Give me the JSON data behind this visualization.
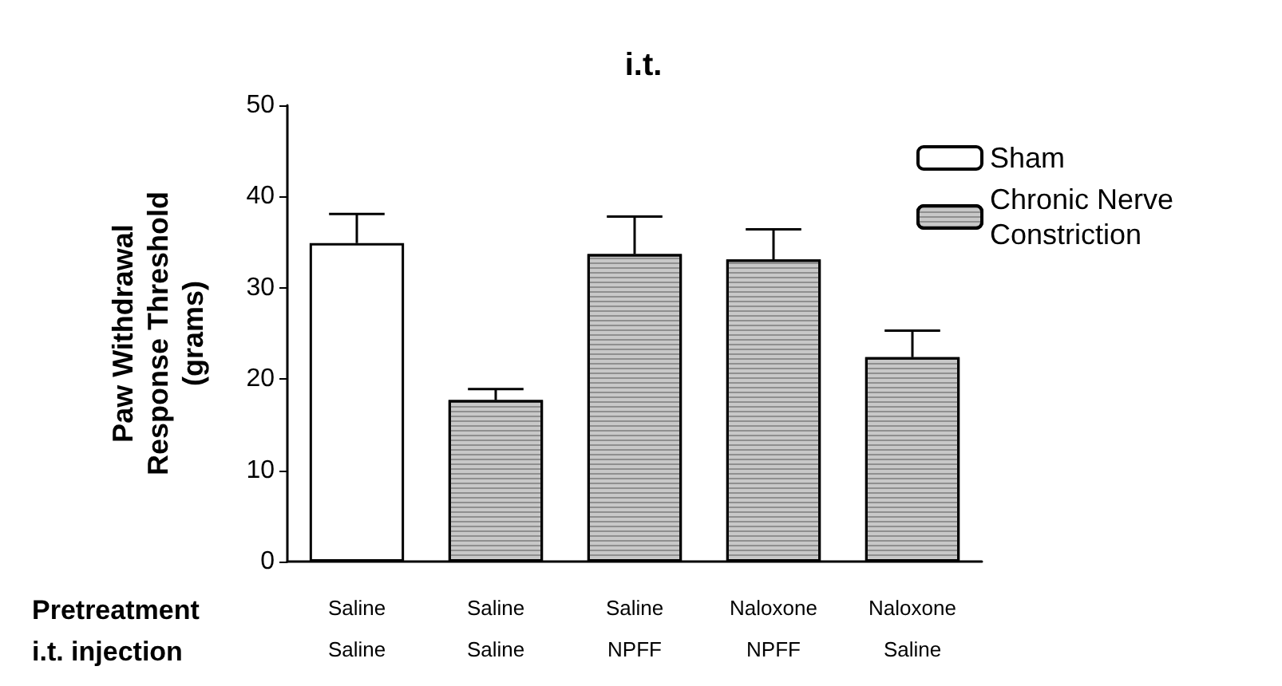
{
  "chart_data": {
    "type": "bar",
    "title": "i.t.",
    "ylabel": "Paw Withdrawal\nResponse Threshold\n(grams)",
    "categories": [
      "Saline\nSaline",
      "Saline\nSaline",
      "Saline\nNPFF",
      "Naloxone\nNPFF",
      "Naloxone\nSaline"
    ],
    "series": [
      {
        "name": "Sham",
        "color": "#ffffff",
        "values": [
          34.9,
          null,
          null,
          null,
          null
        ],
        "errors": [
          [
            34.9,
            38.1
          ],
          null,
          null,
          null,
          null
        ]
      },
      {
        "name": "Chronic Nerve Constriction",
        "color": "#c8c8c8",
        "values": [
          null,
          17.7,
          33.7,
          33.1,
          22.4
        ],
        "errors": [
          null,
          [
            17.7,
            18.9
          ],
          [
            33.7,
            37.8
          ],
          [
            33.1,
            36.4
          ],
          [
            22.4,
            25.3
          ]
        ]
      }
    ],
    "annotations": [
      "Pretreatment",
      "i.t. injection"
    ],
    "ylim": [
      0,
      50
    ],
    "yticks": [
      0,
      10,
      20,
      30,
      40,
      50
    ],
    "grid": false,
    "legend": "top right"
  }
}
